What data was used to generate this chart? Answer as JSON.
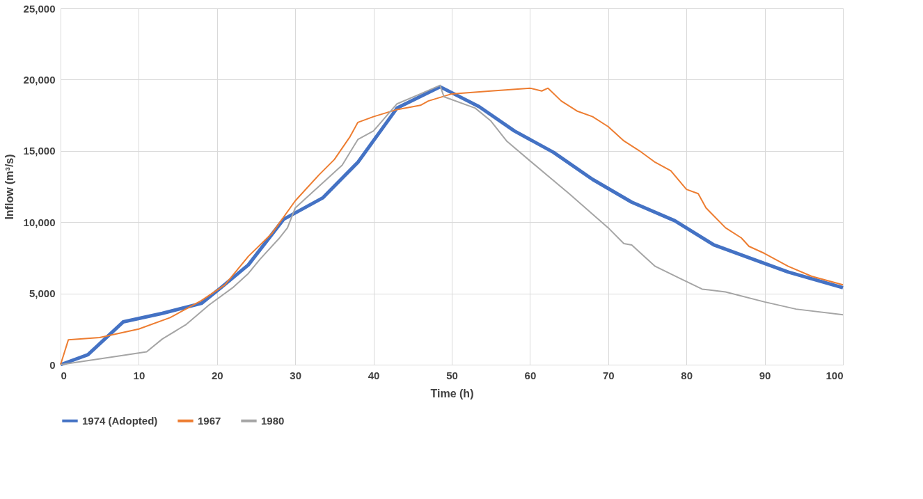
{
  "chart_data": {
    "type": "line",
    "xlabel": "Time (h)",
    "ylabel": "Inflow (m³/s)",
    "xlim": [
      0,
      100
    ],
    "xticks": [
      0,
      10,
      20,
      30,
      40,
      50,
      60,
      70,
      80,
      90,
      100
    ],
    "ylim": [
      0,
      25000
    ],
    "yticks": [
      {
        "value": 0,
        "label": "0"
      },
      {
        "value": 5000,
        "label": "5,000"
      },
      {
        "value": 10000,
        "label": "10,000"
      },
      {
        "value": 15000,
        "label": "15,000"
      },
      {
        "value": 20000,
        "label": "20,000"
      },
      {
        "value": 25000,
        "label": "25,000"
      }
    ],
    "grid": true,
    "legend": "bottom",
    "marker": "none",
    "line_style": "solid",
    "series": [
      {
        "name": "1974 (Adopted)",
        "color": "#4472c4",
        "x": [
          0,
          3.5,
          8,
          13,
          18,
          20.5,
          24,
          28.5,
          33.5,
          38,
          43,
          48.5,
          53.5,
          58,
          63,
          68,
          73,
          78.5,
          83.5,
          88,
          93,
          100
        ],
        "values": [
          0,
          700,
          3000,
          3600,
          4300,
          5400,
          7000,
          10200,
          11700,
          14200,
          18000,
          19500,
          18100,
          16400,
          14900,
          13000,
          11400,
          10100,
          8400,
          7500,
          6500,
          5400
        ]
      },
      {
        "name": "1967",
        "color": "#ed7d31",
        "x": [
          0,
          1,
          5,
          10,
          14,
          18,
          21,
          24,
          27,
          30,
          33,
          35,
          37,
          38,
          40,
          43,
          46,
          47,
          50,
          55,
          60,
          61.5,
          62.3,
          64,
          66,
          68,
          70,
          72,
          74,
          76,
          78,
          80,
          81.5,
          82.5,
          85,
          87,
          88,
          90,
          93,
          96,
          100
        ],
        "values": [
          0,
          1750,
          1900,
          2500,
          3300,
          4500,
          5600,
          7600,
          9200,
          11500,
          13300,
          14400,
          16000,
          17000,
          17400,
          17900,
          18200,
          18500,
          19000,
          19200,
          19400,
          19200,
          19400,
          18500,
          17800,
          17400,
          16700,
          15700,
          15000,
          14200,
          13600,
          12300,
          12000,
          11000,
          9600,
          8900,
          8300,
          7800,
          6900,
          6200,
          5600
        ]
      },
      {
        "name": "1980",
        "color": "#a5a5a5",
        "x": [
          0,
          11,
          13,
          16,
          19,
          22,
          24,
          25.5,
          28,
          29,
          30,
          33,
          36,
          38,
          40,
          43,
          46,
          48.5,
          49,
          53,
          55,
          57,
          60,
          65,
          70,
          72,
          73,
          76,
          79,
          82,
          85,
          90,
          94,
          100
        ],
        "values": [
          0,
          900,
          1800,
          2800,
          4200,
          5400,
          6400,
          7400,
          8900,
          9600,
          11000,
          12500,
          14000,
          15800,
          16400,
          18300,
          19000,
          19600,
          18800,
          18000,
          17100,
          15700,
          14300,
          12000,
          9600,
          8500,
          8400,
          6900,
          6100,
          5300,
          5100,
          4400,
          3900,
          3500
        ]
      }
    ]
  }
}
